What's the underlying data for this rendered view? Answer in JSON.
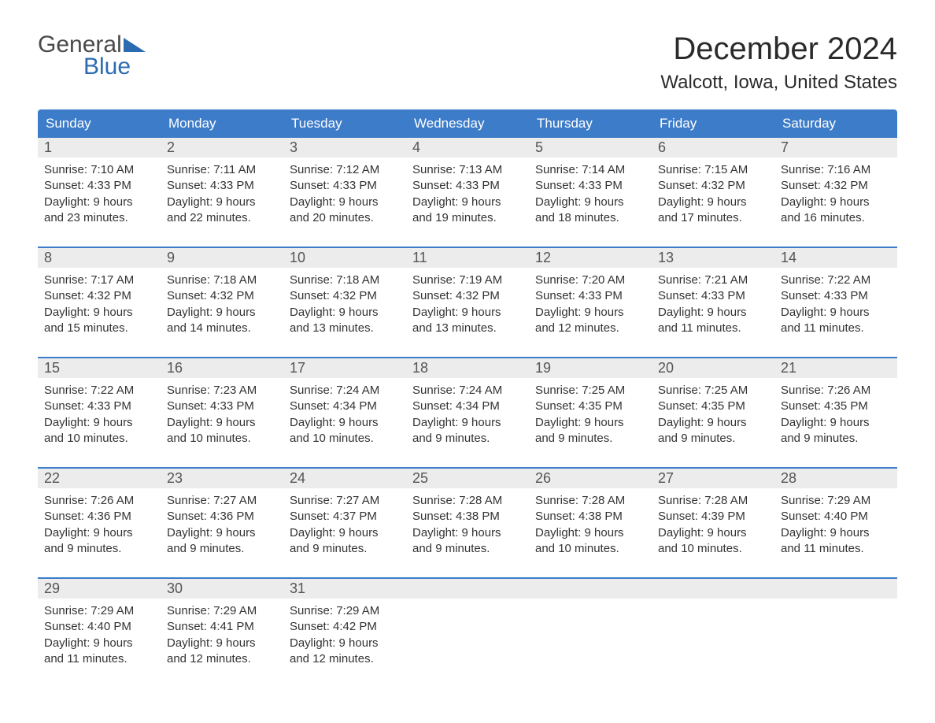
{
  "brand": {
    "text_top": "General",
    "text_bottom": "Blue",
    "color_top": "#4a4a4a",
    "color_bottom": "#2b6cb0",
    "sail_color": "#2b6cb0"
  },
  "header": {
    "month_title": "December 2024",
    "location": "Walcott, Iowa, United States"
  },
  "colors": {
    "header_bg": "#3d7cc9",
    "header_text": "#ffffff",
    "daynum_bg": "#ececec",
    "daynum_text": "#555555",
    "body_text": "#333333",
    "week_border": "#3d7cc9",
    "page_bg": "#ffffff"
  },
  "day_labels": [
    "Sunday",
    "Monday",
    "Tuesday",
    "Wednesday",
    "Thursday",
    "Friday",
    "Saturday"
  ],
  "weeks": [
    [
      {
        "num": "1",
        "sunrise": "Sunrise: 7:10 AM",
        "sunset": "Sunset: 4:33 PM",
        "d1": "Daylight: 9 hours",
        "d2": "and 23 minutes."
      },
      {
        "num": "2",
        "sunrise": "Sunrise: 7:11 AM",
        "sunset": "Sunset: 4:33 PM",
        "d1": "Daylight: 9 hours",
        "d2": "and 22 minutes."
      },
      {
        "num": "3",
        "sunrise": "Sunrise: 7:12 AM",
        "sunset": "Sunset: 4:33 PM",
        "d1": "Daylight: 9 hours",
        "d2": "and 20 minutes."
      },
      {
        "num": "4",
        "sunrise": "Sunrise: 7:13 AM",
        "sunset": "Sunset: 4:33 PM",
        "d1": "Daylight: 9 hours",
        "d2": "and 19 minutes."
      },
      {
        "num": "5",
        "sunrise": "Sunrise: 7:14 AM",
        "sunset": "Sunset: 4:33 PM",
        "d1": "Daylight: 9 hours",
        "d2": "and 18 minutes."
      },
      {
        "num": "6",
        "sunrise": "Sunrise: 7:15 AM",
        "sunset": "Sunset: 4:32 PM",
        "d1": "Daylight: 9 hours",
        "d2": "and 17 minutes."
      },
      {
        "num": "7",
        "sunrise": "Sunrise: 7:16 AM",
        "sunset": "Sunset: 4:32 PM",
        "d1": "Daylight: 9 hours",
        "d2": "and 16 minutes."
      }
    ],
    [
      {
        "num": "8",
        "sunrise": "Sunrise: 7:17 AM",
        "sunset": "Sunset: 4:32 PM",
        "d1": "Daylight: 9 hours",
        "d2": "and 15 minutes."
      },
      {
        "num": "9",
        "sunrise": "Sunrise: 7:18 AM",
        "sunset": "Sunset: 4:32 PM",
        "d1": "Daylight: 9 hours",
        "d2": "and 14 minutes."
      },
      {
        "num": "10",
        "sunrise": "Sunrise: 7:18 AM",
        "sunset": "Sunset: 4:32 PM",
        "d1": "Daylight: 9 hours",
        "d2": "and 13 minutes."
      },
      {
        "num": "11",
        "sunrise": "Sunrise: 7:19 AM",
        "sunset": "Sunset: 4:32 PM",
        "d1": "Daylight: 9 hours",
        "d2": "and 13 minutes."
      },
      {
        "num": "12",
        "sunrise": "Sunrise: 7:20 AM",
        "sunset": "Sunset: 4:33 PM",
        "d1": "Daylight: 9 hours",
        "d2": "and 12 minutes."
      },
      {
        "num": "13",
        "sunrise": "Sunrise: 7:21 AM",
        "sunset": "Sunset: 4:33 PM",
        "d1": "Daylight: 9 hours",
        "d2": "and 11 minutes."
      },
      {
        "num": "14",
        "sunrise": "Sunrise: 7:22 AM",
        "sunset": "Sunset: 4:33 PM",
        "d1": "Daylight: 9 hours",
        "d2": "and 11 minutes."
      }
    ],
    [
      {
        "num": "15",
        "sunrise": "Sunrise: 7:22 AM",
        "sunset": "Sunset: 4:33 PM",
        "d1": "Daylight: 9 hours",
        "d2": "and 10 minutes."
      },
      {
        "num": "16",
        "sunrise": "Sunrise: 7:23 AM",
        "sunset": "Sunset: 4:33 PM",
        "d1": "Daylight: 9 hours",
        "d2": "and 10 minutes."
      },
      {
        "num": "17",
        "sunrise": "Sunrise: 7:24 AM",
        "sunset": "Sunset: 4:34 PM",
        "d1": "Daylight: 9 hours",
        "d2": "and 10 minutes."
      },
      {
        "num": "18",
        "sunrise": "Sunrise: 7:24 AM",
        "sunset": "Sunset: 4:34 PM",
        "d1": "Daylight: 9 hours",
        "d2": "and 9 minutes."
      },
      {
        "num": "19",
        "sunrise": "Sunrise: 7:25 AM",
        "sunset": "Sunset: 4:35 PM",
        "d1": "Daylight: 9 hours",
        "d2": "and 9 minutes."
      },
      {
        "num": "20",
        "sunrise": "Sunrise: 7:25 AM",
        "sunset": "Sunset: 4:35 PM",
        "d1": "Daylight: 9 hours",
        "d2": "and 9 minutes."
      },
      {
        "num": "21",
        "sunrise": "Sunrise: 7:26 AM",
        "sunset": "Sunset: 4:35 PM",
        "d1": "Daylight: 9 hours",
        "d2": "and 9 minutes."
      }
    ],
    [
      {
        "num": "22",
        "sunrise": "Sunrise: 7:26 AM",
        "sunset": "Sunset: 4:36 PM",
        "d1": "Daylight: 9 hours",
        "d2": "and 9 minutes."
      },
      {
        "num": "23",
        "sunrise": "Sunrise: 7:27 AM",
        "sunset": "Sunset: 4:36 PM",
        "d1": "Daylight: 9 hours",
        "d2": "and 9 minutes."
      },
      {
        "num": "24",
        "sunrise": "Sunrise: 7:27 AM",
        "sunset": "Sunset: 4:37 PM",
        "d1": "Daylight: 9 hours",
        "d2": "and 9 minutes."
      },
      {
        "num": "25",
        "sunrise": "Sunrise: 7:28 AM",
        "sunset": "Sunset: 4:38 PM",
        "d1": "Daylight: 9 hours",
        "d2": "and 9 minutes."
      },
      {
        "num": "26",
        "sunrise": "Sunrise: 7:28 AM",
        "sunset": "Sunset: 4:38 PM",
        "d1": "Daylight: 9 hours",
        "d2": "and 10 minutes."
      },
      {
        "num": "27",
        "sunrise": "Sunrise: 7:28 AM",
        "sunset": "Sunset: 4:39 PM",
        "d1": "Daylight: 9 hours",
        "d2": "and 10 minutes."
      },
      {
        "num": "28",
        "sunrise": "Sunrise: 7:29 AM",
        "sunset": "Sunset: 4:40 PM",
        "d1": "Daylight: 9 hours",
        "d2": "and 11 minutes."
      }
    ],
    [
      {
        "num": "29",
        "sunrise": "Sunrise: 7:29 AM",
        "sunset": "Sunset: 4:40 PM",
        "d1": "Daylight: 9 hours",
        "d2": "and 11 minutes."
      },
      {
        "num": "30",
        "sunrise": "Sunrise: 7:29 AM",
        "sunset": "Sunset: 4:41 PM",
        "d1": "Daylight: 9 hours",
        "d2": "and 12 minutes."
      },
      {
        "num": "31",
        "sunrise": "Sunrise: 7:29 AM",
        "sunset": "Sunset: 4:42 PM",
        "d1": "Daylight: 9 hours",
        "d2": "and 12 minutes."
      },
      {
        "empty": true
      },
      {
        "empty": true
      },
      {
        "empty": true
      },
      {
        "empty": true
      }
    ]
  ]
}
